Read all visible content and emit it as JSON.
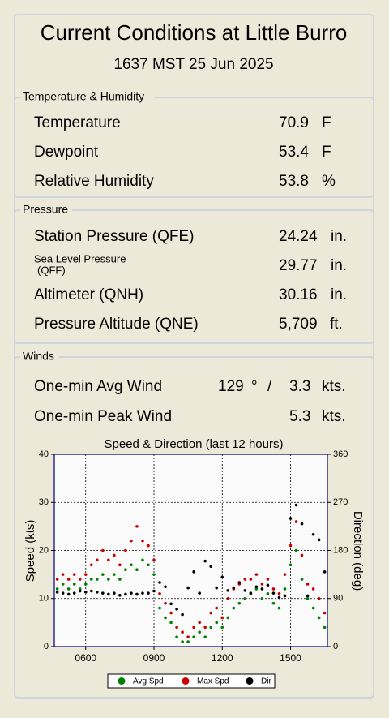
{
  "header": {
    "title": "Current Conditions at Little Burro",
    "timestamp": "1637 MST 25 Jun 2025"
  },
  "temperature_humidity": {
    "legend": "Temperature & Humidity",
    "rows": [
      {
        "label": "Temperature",
        "value": "70.9",
        "unit": "F"
      },
      {
        "label": "Dewpoint",
        "value": "53.4",
        "unit": "F"
      },
      {
        "label": "Relative Humidity",
        "value": "53.8",
        "unit": "%"
      }
    ]
  },
  "pressure": {
    "legend": "Pressure",
    "rows": [
      {
        "label": "Station Pressure (QFE)",
        "value": "24.24",
        "unit": "in."
      },
      {
        "label": "Sea Level Pressure",
        "label_line2": "(QFF)",
        "value": "29.77",
        "unit": "in."
      },
      {
        "label": "Altimeter (QNH)",
        "value": "30.16",
        "unit": "in."
      },
      {
        "label": "Pressure Altitude (QNE)",
        "value": "5,709",
        "unit": "ft."
      }
    ]
  },
  "winds": {
    "legend": "Winds",
    "avg": {
      "label": "One-min Avg Wind",
      "direction": "129",
      "direction_unit": "°",
      "separator": "/",
      "value": "3.3",
      "unit": "kts."
    },
    "peak": {
      "label": "One-min Peak Wind",
      "value": "5.3",
      "unit": "kts."
    }
  },
  "chart_data": {
    "type": "scatter",
    "title": "Speed & Direction (last 12 hours)",
    "ylabel": "Speed (kts)",
    "y2label": "Direction (deg)",
    "x": [
      4.75,
      5,
      5.25,
      5.5,
      5.75,
      6,
      6.25,
      6.5,
      6.75,
      7,
      7.25,
      7.5,
      7.75,
      8,
      8.25,
      8.5,
      8.75,
      9,
      9.25,
      9.5,
      9.75,
      10,
      10.25,
      10.5,
      10.75,
      11,
      11.25,
      11.5,
      11.75,
      12,
      12.25,
      12.5,
      12.75,
      13,
      13.25,
      13.5,
      13.75,
      14,
      14.25,
      14.5,
      14.75,
      15,
      15.25,
      15.5,
      15.75,
      16,
      16.25,
      16.5
    ],
    "series": [
      {
        "name": "Avg Spd",
        "color": "#008000",
        "values": [
          12,
          13,
          12,
          13,
          12,
          13,
          14,
          14,
          15,
          14,
          15,
          14,
          16,
          17,
          16,
          18,
          17,
          15,
          8,
          6,
          5,
          2,
          1,
          1,
          2,
          3,
          2,
          4,
          5,
          4,
          6,
          8,
          9,
          10,
          11,
          12,
          10,
          11,
          9,
          8,
          12,
          17,
          20,
          14,
          10,
          8,
          6,
          4
        ]
      },
      {
        "name": "Max Spd",
        "color": "#cc0000",
        "values": [
          14,
          15,
          14,
          15,
          14,
          15,
          17,
          18,
          20,
          18,
          19,
          17,
          20,
          22,
          25,
          22,
          21,
          18,
          11,
          9,
          7,
          4,
          3,
          2,
          4,
          5,
          4,
          7,
          8,
          6,
          10,
          12,
          13,
          14,
          14,
          15,
          13,
          14,
          12,
          11,
          15,
          21,
          26,
          19,
          13,
          12,
          10,
          7
        ]
      },
      {
        "name": "Dir",
        "color": "#000000",
        "axis": "y2",
        "values": [
          102,
          100,
          98,
          100,
          104,
          102,
          104,
          102,
          100,
          98,
          100,
          96,
          98,
          100,
          98,
          100,
          100,
          104,
          120,
          112,
          80,
          70,
          60,
          110,
          140,
          100,
          160,
          150,
          110,
          130,
          105,
          110,
          120,
          105,
          100,
          112,
          108,
          115,
          100,
          92,
          95,
          240,
          265,
          230,
          95,
          210,
          200,
          140
        ]
      }
    ],
    "xlim": [
      4.62,
      16.62
    ],
    "xticks": [
      {
        "value": 6,
        "label": "0600"
      },
      {
        "value": 9,
        "label": "0900"
      },
      {
        "value": 12,
        "label": "1200"
      },
      {
        "value": 15,
        "label": "1500"
      }
    ],
    "ylim": [
      0,
      40
    ],
    "yticks": [
      0,
      10,
      20,
      30,
      40
    ],
    "y2lim": [
      0,
      360
    ],
    "y2ticks": [
      0,
      90,
      180,
      270,
      360
    ],
    "grid": true
  }
}
